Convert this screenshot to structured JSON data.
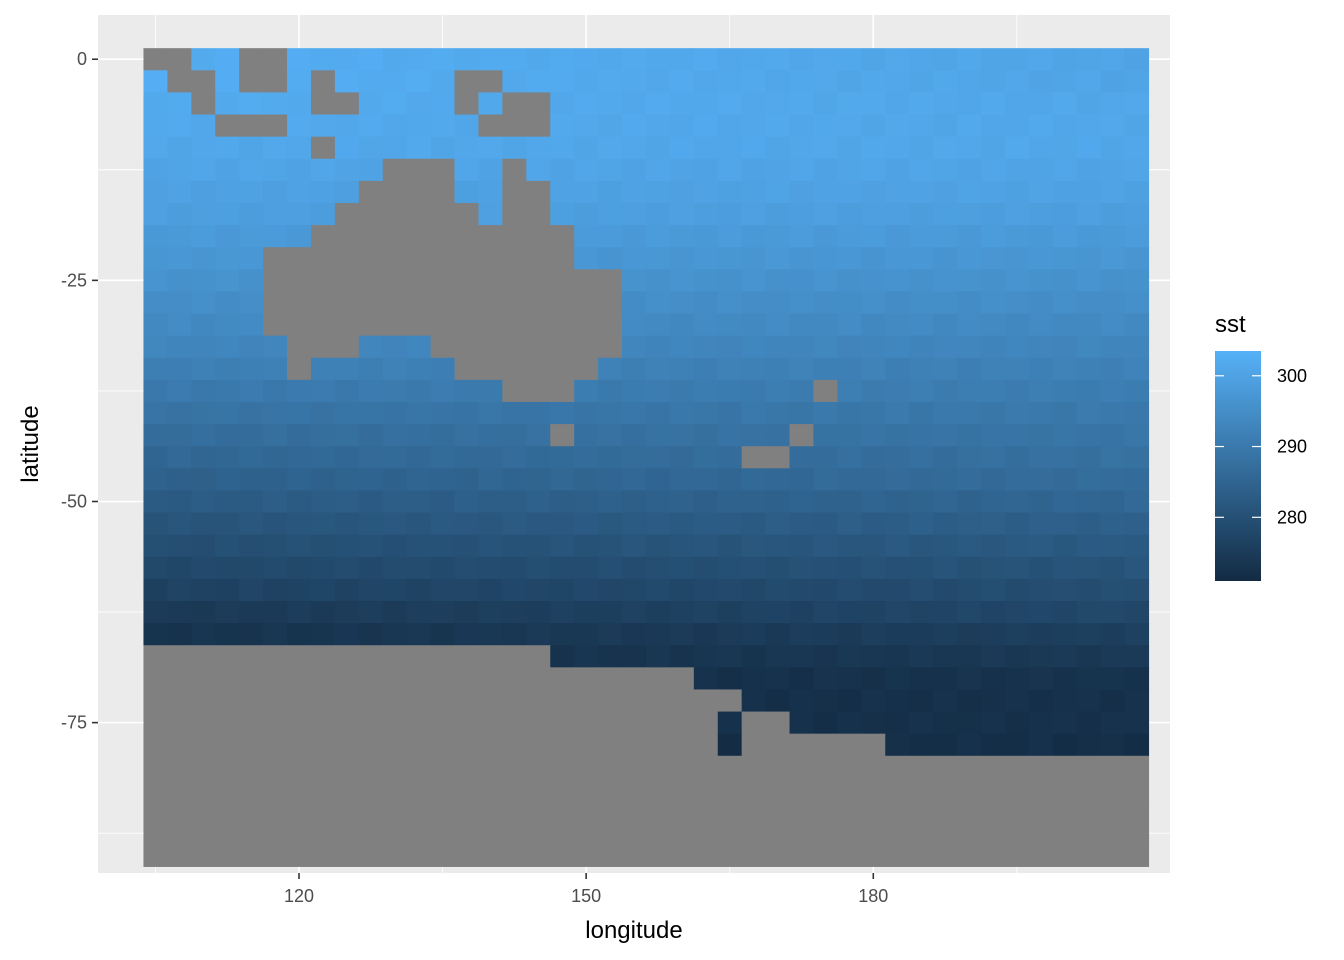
{
  "chart_data": {
    "type": "heatmap",
    "title": "",
    "xlabel": "longitude",
    "ylabel": "latitude",
    "xlim": [
      99,
      211
    ],
    "ylim": [
      -92,
      5
    ],
    "x_ticks": [
      {
        "value": 120,
        "label": "120"
      },
      {
        "value": 150,
        "label": "150"
      },
      {
        "value": 180,
        "label": "180"
      }
    ],
    "y_ticks": [
      {
        "value": 0,
        "label": "0"
      },
      {
        "value": -25,
        "label": "-25"
      },
      {
        "value": -50,
        "label": "-50"
      },
      {
        "value": -75,
        "label": "-75"
      }
    ],
    "grid_cell": {
      "lon_step": 2.5,
      "lat_step": 2.5
    },
    "lon_range": [
      105,
      207.5
    ],
    "lat_range": [
      -91.25,
      1.25
    ],
    "legend": {
      "title": "sst",
      "position": "right",
      "range": [
        271,
        303.5
      ],
      "ticks": [
        {
          "value": 280,
          "label": "280"
        },
        {
          "value": 290,
          "label": "290"
        },
        {
          "value": 300,
          "label": "300"
        }
      ],
      "low_color": "#132B43",
      "high_color": "#56B1F7"
    },
    "na_color": "#808080",
    "sst_by_latitude_row": {
      "lats": [
        0,
        -2.5,
        -5,
        -7.5,
        -10,
        -12.5,
        -15,
        -17.5,
        -20,
        -22.5,
        -25,
        -27.5,
        -30,
        -32.5,
        -35,
        -37.5,
        -40,
        -42.5,
        -45,
        -47.5,
        -50,
        -52.5,
        -55,
        -57.5,
        -60,
        -62.5,
        -65,
        -67.5,
        -70,
        -72.5,
        -75,
        -77.5
      ],
      "sst_west": [
        302.5,
        302.5,
        302,
        301.5,
        301,
        300.5,
        299.5,
        299,
        298,
        297,
        296,
        295,
        294,
        293,
        291.5,
        290,
        288.5,
        287,
        285.5,
        284,
        282.5,
        281,
        279.5,
        278,
        276.5,
        274.5,
        273,
        272,
        271.5,
        271.5,
        271.5,
        271.5
      ],
      "sst_east": [
        300.5,
        300.5,
        301,
        301,
        301,
        300.5,
        300,
        299,
        298,
        297,
        296,
        295,
        294,
        293,
        292,
        291,
        290,
        289,
        288,
        287,
        285.5,
        284,
        282.5,
        281,
        279.5,
        278,
        276,
        274.5,
        273,
        272.5,
        272.5,
        272
      ]
    },
    "land_mask_note": "NA (land) cells rendered grey",
    "land_cells": [
      [
        105,
        0
      ],
      [
        107.5,
        0
      ],
      [
        107.5,
        -2.5
      ],
      [
        110,
        -2.5
      ],
      [
        110,
        -5
      ],
      [
        115,
        0
      ],
      [
        117.5,
        0
      ],
      [
        115,
        -2.5
      ],
      [
        117.5,
        -2.5
      ],
      [
        112.5,
        -7.5
      ],
      [
        115,
        -7.5
      ],
      [
        117.5,
        -7.5
      ],
      [
        122.5,
        -2.5
      ],
      [
        122.5,
        -5
      ],
      [
        125,
        -5
      ],
      [
        122.5,
        -10
      ],
      [
        137.5,
        -2.5
      ],
      [
        140,
        -2.5
      ],
      [
        137.5,
        -5
      ],
      [
        142.5,
        -5
      ],
      [
        145,
        -5
      ],
      [
        140,
        -7.5
      ],
      [
        142.5,
        -7.5
      ],
      [
        145,
        -7.5
      ],
      [
        130,
        -12.5
      ],
      [
        132.5,
        -12.5
      ],
      [
        135,
        -12.5
      ],
      [
        142.5,
        -12.5
      ],
      [
        127.5,
        -15
      ],
      [
        130,
        -15
      ],
      [
        132.5,
        -15
      ],
      [
        135,
        -15
      ],
      [
        142.5,
        -15
      ],
      [
        145,
        -15
      ],
      [
        125,
        -17.5
      ],
      [
        127.5,
        -17.5
      ],
      [
        130,
        -17.5
      ],
      [
        132.5,
        -17.5
      ],
      [
        135,
        -17.5
      ],
      [
        137.5,
        -17.5
      ],
      [
        142.5,
        -17.5
      ],
      [
        145,
        -17.5
      ],
      [
        122.5,
        -20
      ],
      [
        125,
        -20
      ],
      [
        127.5,
        -20
      ],
      [
        130,
        -20
      ],
      [
        132.5,
        -20
      ],
      [
        135,
        -20
      ],
      [
        137.5,
        -20
      ],
      [
        140,
        -20
      ],
      [
        142.5,
        -20
      ],
      [
        145,
        -20
      ],
      [
        147.5,
        -20
      ],
      [
        117.5,
        -22.5
      ],
      [
        120,
        -22.5
      ],
      [
        122.5,
        -22.5
      ],
      [
        125,
        -22.5
      ],
      [
        127.5,
        -22.5
      ],
      [
        130,
        -22.5
      ],
      [
        132.5,
        -22.5
      ],
      [
        135,
        -22.5
      ],
      [
        137.5,
        -22.5
      ],
      [
        140,
        -22.5
      ],
      [
        142.5,
        -22.5
      ],
      [
        145,
        -22.5
      ],
      [
        147.5,
        -22.5
      ],
      [
        117.5,
        -25
      ],
      [
        120,
        -25
      ],
      [
        122.5,
        -25
      ],
      [
        125,
        -25
      ],
      [
        127.5,
        -25
      ],
      [
        130,
        -25
      ],
      [
        132.5,
        -25
      ],
      [
        135,
        -25
      ],
      [
        137.5,
        -25
      ],
      [
        140,
        -25
      ],
      [
        142.5,
        -25
      ],
      [
        145,
        -25
      ],
      [
        147.5,
        -25
      ],
      [
        150,
        -25
      ],
      [
        152.5,
        -25
      ],
      [
        117.5,
        -27.5
      ],
      [
        120,
        -27.5
      ],
      [
        122.5,
        -27.5
      ],
      [
        125,
        -27.5
      ],
      [
        127.5,
        -27.5
      ],
      [
        130,
        -27.5
      ],
      [
        132.5,
        -27.5
      ],
      [
        135,
        -27.5
      ],
      [
        137.5,
        -27.5
      ],
      [
        140,
        -27.5
      ],
      [
        142.5,
        -27.5
      ],
      [
        145,
        -27.5
      ],
      [
        147.5,
        -27.5
      ],
      [
        150,
        -27.5
      ],
      [
        152.5,
        -27.5
      ],
      [
        117.5,
        -30
      ],
      [
        120,
        -30
      ],
      [
        122.5,
        -30
      ],
      [
        125,
        -30
      ],
      [
        127.5,
        -30
      ],
      [
        130,
        -30
      ],
      [
        132.5,
        -30
      ],
      [
        135,
        -30
      ],
      [
        137.5,
        -30
      ],
      [
        140,
        -30
      ],
      [
        142.5,
        -30
      ],
      [
        145,
        -30
      ],
      [
        147.5,
        -30
      ],
      [
        150,
        -30
      ],
      [
        152.5,
        -30
      ],
      [
        120,
        -32.5
      ],
      [
        122.5,
        -32.5
      ],
      [
        125,
        -32.5
      ],
      [
        135,
        -32.5
      ],
      [
        137.5,
        -32.5
      ],
      [
        140,
        -32.5
      ],
      [
        142.5,
        -32.5
      ],
      [
        145,
        -32.5
      ],
      [
        147.5,
        -32.5
      ],
      [
        150,
        -32.5
      ],
      [
        152.5,
        -32.5
      ],
      [
        120,
        -35
      ],
      [
        137.5,
        -35
      ],
      [
        140,
        -35
      ],
      [
        142.5,
        -35
      ],
      [
        145,
        -35
      ],
      [
        147.5,
        -35
      ],
      [
        150,
        -35
      ],
      [
        142.5,
        -37.5
      ],
      [
        145,
        -37.5
      ],
      [
        147.5,
        -37.5
      ],
      [
        175,
        -37.5
      ],
      [
        147.5,
        -42.5
      ],
      [
        172.5,
        -42.5
      ],
      [
        167.5,
        -45
      ],
      [
        170,
        -45
      ]
    ],
    "antarctic_edge": [
      {
        "lon_from": 105,
        "lon_to": 147.5,
        "lat_top": -67.5
      },
      {
        "lon_from": 147.5,
        "lon_to": 162.5,
        "lat_top": -70
      },
      {
        "lon_from": 162.5,
        "lon_to": 167.5,
        "lat_top": -72.5
      },
      {
        "lon_from": 167.5,
        "lon_to": 172.5,
        "lat_top": -75
      },
      {
        "lon_from": 172.5,
        "lon_to": 182.5,
        "lat_top": -77.5
      },
      {
        "lon_from": 182.5,
        "lon_to": 207.5,
        "lat_top": -80
      }
    ],
    "antarctic_extra": [
      [
        162.5,
        -72.5
      ],
      [
        162.5,
        -75
      ],
      [
        167.5,
        -75
      ],
      [
        170,
        -75
      ]
    ],
    "antarctic_gaps": [
      [
        165,
        -75
      ],
      [
        165,
        -77.5
      ],
      [
        167.5,
        -72.5
      ]
    ]
  }
}
